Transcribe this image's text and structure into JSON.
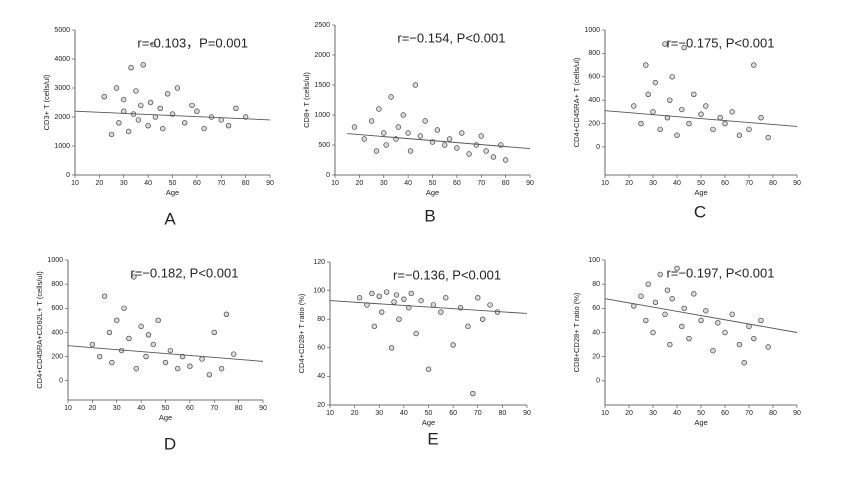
{
  "chart_data": [
    {
      "type": "scatter",
      "panel_label": "A",
      "annotation": "r=-0.103，P=0.001",
      "x_label": "Age",
      "y_label": "CD3+ T (cells/ul)",
      "xlim": [
        10,
        90
      ],
      "xticks": [
        10,
        20,
        30,
        40,
        50,
        60,
        70,
        80,
        90
      ],
      "ylim": [
        0,
        5000
      ],
      "yticks": [
        0,
        1000,
        2000,
        3000,
        4000,
        5000
      ],
      "x": [
        22,
        25,
        27,
        28,
        30,
        30,
        32,
        33,
        34,
        35,
        36,
        37,
        38,
        40,
        41,
        42,
        43,
        45,
        46,
        48,
        50,
        52,
        55,
        58,
        60,
        63,
        66,
        70,
        73,
        76,
        80
      ],
      "y": [
        2700,
        1400,
        3000,
        1800,
        2200,
        2600,
        1500,
        3700,
        2100,
        2900,
        1900,
        2400,
        3800,
        1700,
        2500,
        4500,
        2000,
        2300,
        1600,
        2800,
        2100,
        3000,
        1800,
        2400,
        2200,
        1600,
        2000,
        1900,
        1700,
        2300,
        2000
      ],
      "fit": {
        "x": [
          10,
          90
        ],
        "y": [
          2200,
          1900
        ]
      }
    },
    {
      "type": "scatter",
      "panel_label": "B",
      "annotation": "r=−0.154, P<0.001",
      "x_label": "Age",
      "y_label": "CD8+ T (cells/ul)",
      "xlim": [
        10,
        90
      ],
      "xticks": [
        10,
        20,
        30,
        40,
        50,
        60,
        70,
        80,
        90
      ],
      "ylim": [
        0,
        2500
      ],
      "yticks": [
        0,
        500,
        1000,
        1500,
        2000,
        2500
      ],
      "x": [
        18,
        22,
        25,
        27,
        28,
        30,
        31,
        33,
        35,
        36,
        38,
        40,
        41,
        43,
        45,
        47,
        50,
        52,
        55,
        57,
        60,
        62,
        65,
        68,
        70,
        72,
        75,
        78,
        80
      ],
      "y": [
        800,
        600,
        900,
        400,
        1100,
        700,
        500,
        1300,
        600,
        800,
        1000,
        700,
        400,
        1500,
        650,
        900,
        550,
        750,
        500,
        600,
        450,
        700,
        350,
        500,
        650,
        400,
        300,
        500,
        250
      ],
      "fit": {
        "x": [
          15,
          90
        ],
        "y": [
          690,
          440
        ]
      }
    },
    {
      "type": "scatter",
      "panel_label": "C",
      "annotation": "r=−0.175, P<0.001",
      "x_label": "Age",
      "y_label": "CD4+CD45RA+ T (cells/ul)",
      "xlim": [
        10,
        90
      ],
      "xticks": [
        10,
        20,
        30,
        40,
        50,
        60,
        70,
        80,
        90
      ],
      "ylim": [
        -240,
        1000
      ],
      "yticks": [
        0,
        200,
        400,
        600,
        800,
        1000
      ],
      "x": [
        22,
        25,
        27,
        28,
        30,
        31,
        33,
        35,
        36,
        37,
        38,
        40,
        42,
        43,
        45,
        47,
        50,
        52,
        55,
        58,
        60,
        63,
        66,
        70,
        72,
        75,
        78
      ],
      "y": [
        350,
        200,
        700,
        450,
        300,
        550,
        150,
        880,
        250,
        400,
        600,
        100,
        320,
        850,
        200,
        450,
        280,
        350,
        150,
        250,
        200,
        300,
        100,
        150,
        700,
        250,
        80
      ],
      "fit": {
        "x": [
          10,
          90
        ],
        "y": [
          310,
          175
        ]
      }
    },
    {
      "type": "scatter",
      "panel_label": "D",
      "annotation": "r=−0.182, P<0.001",
      "x_label": "Age",
      "y_label": "CD4+CD45RA+CD62L+ T (cells/ul)",
      "xlim": [
        10,
        90
      ],
      "xticks": [
        10,
        20,
        30,
        40,
        50,
        60,
        70,
        80,
        90
      ],
      "ylim": [
        -160,
        1000
      ],
      "yticks": [
        0,
        200,
        400,
        600,
        800,
        1000
      ],
      "x": [
        20,
        23,
        25,
        27,
        28,
        30,
        32,
        33,
        35,
        37,
        38,
        40,
        42,
        43,
        45,
        47,
        50,
        52,
        55,
        57,
        60,
        65,
        68,
        70,
        73,
        75,
        78
      ],
      "y": [
        300,
        200,
        700,
        400,
        150,
        500,
        250,
        600,
        350,
        860,
        100,
        450,
        200,
        380,
        300,
        500,
        150,
        250,
        100,
        200,
        120,
        180,
        50,
        400,
        100,
        550,
        220
      ],
      "fit": {
        "x": [
          10,
          90
        ],
        "y": [
          290,
          160
        ]
      }
    },
    {
      "type": "scatter",
      "panel_label": "E",
      "annotation": "r=−0.136, P<0.001",
      "x_label": "Age",
      "y_label": "CD4+CD28+ T ratio (%)",
      "xlim": [
        10,
        90
      ],
      "xticks": [
        10,
        20,
        30,
        40,
        50,
        60,
        70,
        80,
        90
      ],
      "ylim": [
        20,
        120
      ],
      "yticks": [
        20,
        40,
        60,
        80,
        100,
        120
      ],
      "x": [
        22,
        25,
        27,
        28,
        30,
        31,
        33,
        35,
        36,
        37,
        38,
        40,
        42,
        43,
        45,
        47,
        50,
        52,
        55,
        57,
        60,
        63,
        66,
        68,
        70,
        72,
        75,
        78
      ],
      "y": [
        95,
        90,
        98,
        75,
        96,
        85,
        99,
        60,
        92,
        97,
        80,
        94,
        88,
        98,
        70,
        93,
        45,
        90,
        85,
        95,
        62,
        88,
        75,
        28,
        95,
        80,
        90,
        85
      ],
      "fit": {
        "x": [
          10,
          90
        ],
        "y": [
          93,
          84
        ]
      }
    },
    {
      "type": "scatter",
      "annotation": "r=−0.197, P<0.001",
      "x_label": "Age",
      "y_label": "CD8+CD28+ T ratio (%)",
      "xlim": [
        10,
        90
      ],
      "xticks": [
        10,
        20,
        30,
        40,
        50,
        60,
        70,
        80,
        90
      ],
      "ylim": [
        -20,
        100
      ],
      "yticks": [
        0,
        20,
        40,
        60,
        80,
        100
      ],
      "x": [
        22,
        25,
        27,
        28,
        30,
        31,
        33,
        35,
        36,
        37,
        38,
        40,
        42,
        43,
        45,
        47,
        50,
        52,
        55,
        57,
        60,
        63,
        66,
        68,
        70,
        72,
        75,
        78
      ],
      "y": [
        62,
        70,
        50,
        80,
        40,
        65,
        88,
        55,
        75,
        30,
        68,
        93,
        45,
        60,
        35,
        72,
        50,
        58,
        25,
        48,
        40,
        55,
        30,
        15,
        45,
        35,
        50,
        28
      ],
      "fit": {
        "x": [
          10,
          90
        ],
        "y": [
          68,
          40
        ]
      }
    }
  ]
}
